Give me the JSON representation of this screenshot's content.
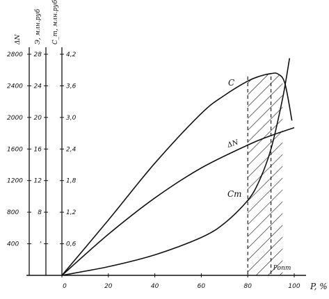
{
  "chart_data": {
    "type": "line",
    "x_axis": {
      "label": "P, %",
      "ticks": [
        "0",
        "20",
        "40",
        "60",
        "80",
        "100"
      ],
      "range": [
        0,
        100
      ]
    },
    "y_axes": [
      {
        "label": "ΔN",
        "ticks": [
          "400",
          "800",
          "1200",
          "1600",
          "2000",
          "2400",
          "2800"
        ],
        "range": [
          0,
          2800
        ]
      },
      {
        "label": "Э, млн.руб",
        "ticks": [
          "'",
          "8",
          "12",
          "16",
          "20",
          "24",
          "28"
        ],
        "range": [
          0,
          28
        ]
      },
      {
        "label": "C_т, млн.руб",
        "ticks": [
          "0,6",
          "1,2",
          "1,8",
          "2,4",
          "3,0",
          "3,6",
          "4,2"
        ],
        "range": [
          0,
          4.2
        ]
      }
    ],
    "series": [
      {
        "name": "C",
        "axis": "ΔN",
        "x": [
          0,
          20,
          40,
          60,
          70,
          80,
          85,
          90,
          93,
          96,
          99
        ],
        "y": [
          0,
          700,
          1420,
          2050,
          2280,
          2460,
          2520,
          2555,
          2550,
          2430,
          1960
        ]
      },
      {
        "name": "ΔN",
        "axis": "ΔN",
        "x": [
          0,
          20,
          40,
          60,
          80,
          90,
          100
        ],
        "y": [
          0,
          520,
          980,
          1360,
          1650,
          1770,
          1870
        ]
      },
      {
        "name": "C_т",
        "axis": "ΔN",
        "x": [
          0,
          20,
          40,
          60,
          70,
          80,
          85,
          90,
          95,
          98
        ],
        "y": [
          0,
          110,
          260,
          480,
          660,
          950,
          1200,
          1600,
          2240,
          2750
        ]
      }
    ],
    "curve_labels": {
      "C": "C",
      "dN": "ΔN",
      "Ct": "Cт"
    },
    "annotations": [
      {
        "text": "Pопт",
        "x": 90
      },
      {
        "type": "hatched-region",
        "x_range": [
          80,
          95
        ]
      },
      {
        "type": "dashed-line",
        "x": 80
      },
      {
        "type": "dashed-line",
        "x": 90
      }
    ],
    "grid": false,
    "legend": "none"
  }
}
